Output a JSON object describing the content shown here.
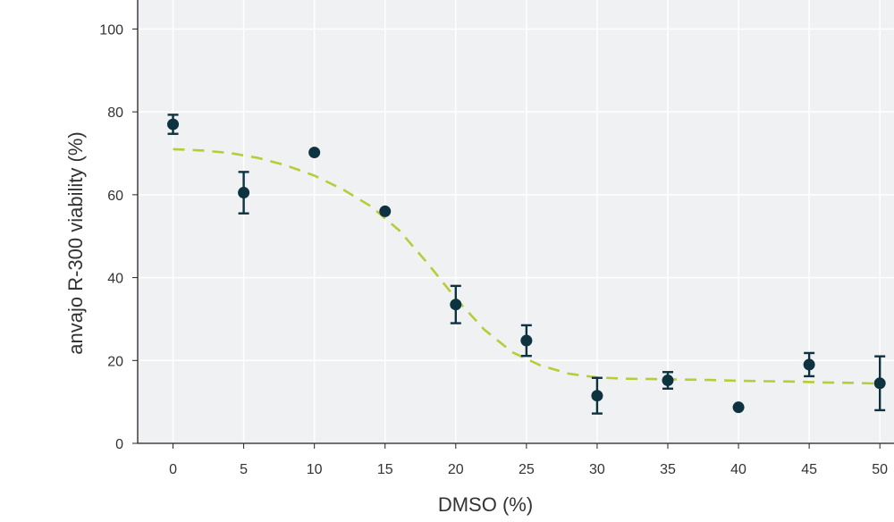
{
  "chart_data": {
    "type": "scatter",
    "title": "",
    "xlabel": "DMSO (%)",
    "ylabel": "anvajo R-300 viability (%)",
    "xlim": [
      -2.5,
      51
    ],
    "ylim": [
      0,
      107
    ],
    "x_ticks": [
      0,
      5,
      10,
      15,
      20,
      25,
      30,
      35,
      40,
      45,
      50
    ],
    "y_ticks": [
      0,
      20,
      40,
      60,
      80,
      100
    ],
    "grid": true,
    "legend": "none",
    "colors": {
      "plot_background": "#f0f1f2",
      "grid": "#ffffff",
      "points": "#0d3340",
      "fit_line": "#b8cc3a",
      "axis": "#222222"
    },
    "series": [
      {
        "x": [
          0,
          5,
          10,
          15,
          20,
          25,
          30,
          35,
          40,
          45,
          50
        ],
        "y": [
          77,
          60.5,
          70.2,
          56,
          33.5,
          24.8,
          11.5,
          15.2,
          8.7,
          19,
          14.5
        ],
        "error": [
          2.3,
          5,
          0,
          0,
          4.5,
          3.7,
          4.3,
          2,
          0,
          2.8,
          6.5
        ]
      }
    ],
    "fit": {
      "style": "dashed",
      "x": [
        0,
        2,
        4,
        6,
        8,
        10,
        12,
        14,
        16,
        18,
        20,
        22,
        24,
        26,
        28,
        30,
        32,
        34,
        36,
        38,
        40,
        42,
        44,
        46,
        48,
        50
      ],
      "y": [
        71,
        70.7,
        70.1,
        68.9,
        67.1,
        64.6,
        61.3,
        57.2,
        51.4,
        43.5,
        35,
        27.5,
        22,
        18.8,
        16.8,
        15.9,
        15.6,
        15.5,
        15.4,
        15.3,
        15.1,
        15,
        14.9,
        14.7,
        14.6,
        14.4
      ]
    }
  }
}
